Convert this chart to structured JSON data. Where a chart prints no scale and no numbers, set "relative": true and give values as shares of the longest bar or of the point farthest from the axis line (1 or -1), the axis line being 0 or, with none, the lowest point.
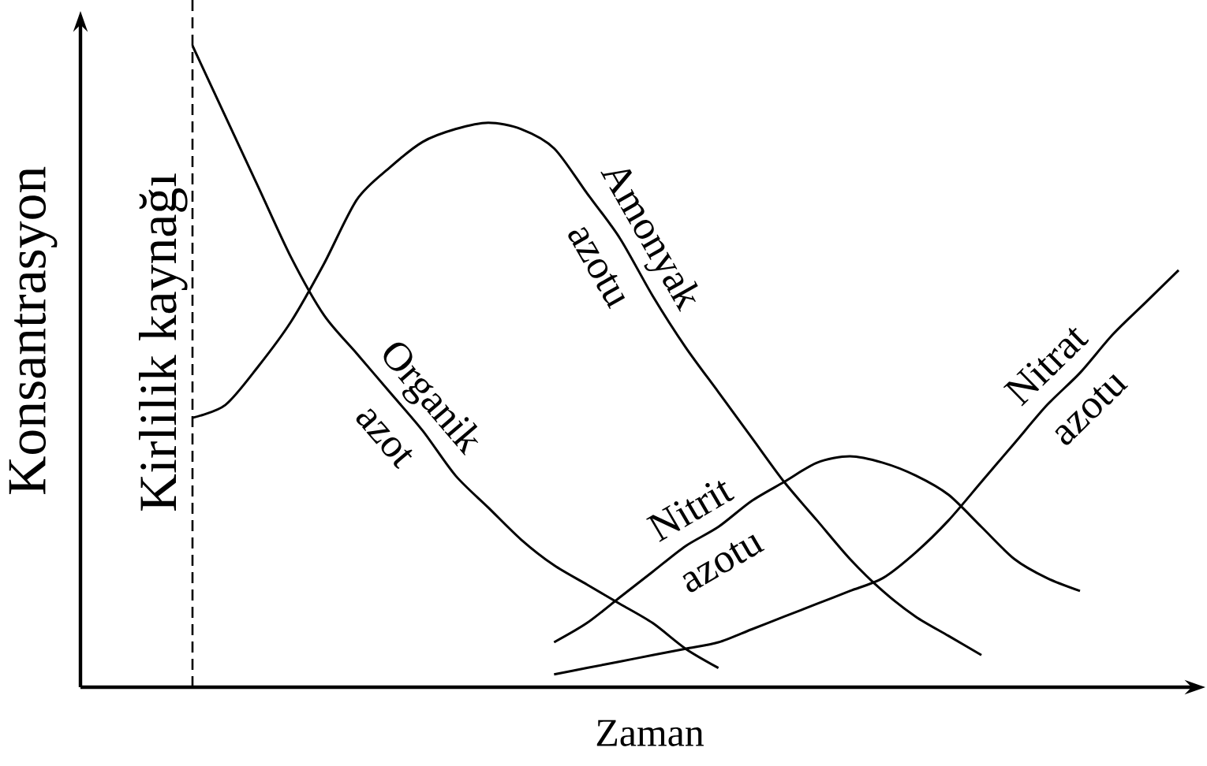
{
  "chart_data": {
    "type": "line",
    "xlabel": "Zaman",
    "ylabel": "Konsantrasyon",
    "relative": true,
    "categories": [
      null,
      null,
      null,
      null,
      null,
      null,
      null,
      null,
      null,
      null,
      null,
      null,
      null,
      null,
      null,
      null,
      null,
      null,
      null,
      null,
      null,
      null,
      null,
      null,
      null,
      null,
      null,
      null,
      null,
      null,
      null
    ],
    "series": [
      {
        "name": "Organik azot",
        "color": "#000000",
        "values": [
          1.0,
          0.89,
          0.78,
          0.67,
          0.58,
          0.52,
          0.46,
          0.4,
          0.33,
          0.28,
          0.23,
          0.19,
          0.16,
          0.13,
          0.1,
          0.06,
          0.03,
          null,
          null,
          null,
          null,
          null,
          null,
          null,
          null,
          null,
          null,
          null,
          null,
          null,
          null
        ]
      },
      {
        "name": "Amonyak azotu",
        "color": "#000000",
        "values": [
          0.42,
          0.44,
          0.5,
          0.57,
          0.66,
          0.76,
          0.81,
          0.85,
          0.87,
          0.88,
          0.87,
          0.84,
          0.77,
          0.7,
          0.61,
          0.53,
          0.46,
          0.39,
          0.32,
          0.26,
          0.2,
          0.15,
          0.11,
          0.08,
          0.05,
          null,
          null,
          null,
          null,
          null,
          null
        ]
      },
      {
        "name": "Nitrit azotu",
        "color": "#000000",
        "values": [
          null,
          null,
          null,
          null,
          null,
          null,
          null,
          null,
          null,
          null,
          null,
          0.07,
          0.1,
          0.14,
          0.18,
          0.22,
          0.25,
          0.29,
          0.32,
          0.35,
          0.36,
          0.35,
          0.33,
          0.3,
          0.25,
          0.2,
          0.17,
          0.15,
          null,
          null,
          null
        ]
      },
      {
        "name": "Nitrat azotu",
        "color": "#000000",
        "values": [
          null,
          null,
          null,
          null,
          null,
          null,
          null,
          null,
          null,
          null,
          null,
          0.02,
          0.03,
          0.04,
          0.05,
          0.06,
          0.07,
          0.09,
          0.11,
          0.13,
          0.15,
          0.17,
          0.21,
          0.26,
          0.32,
          0.38,
          0.44,
          0.49,
          0.55,
          0.6,
          0.65
        ]
      }
    ],
    "annotations": [
      "Kirlilik kaynağı"
    ]
  }
}
